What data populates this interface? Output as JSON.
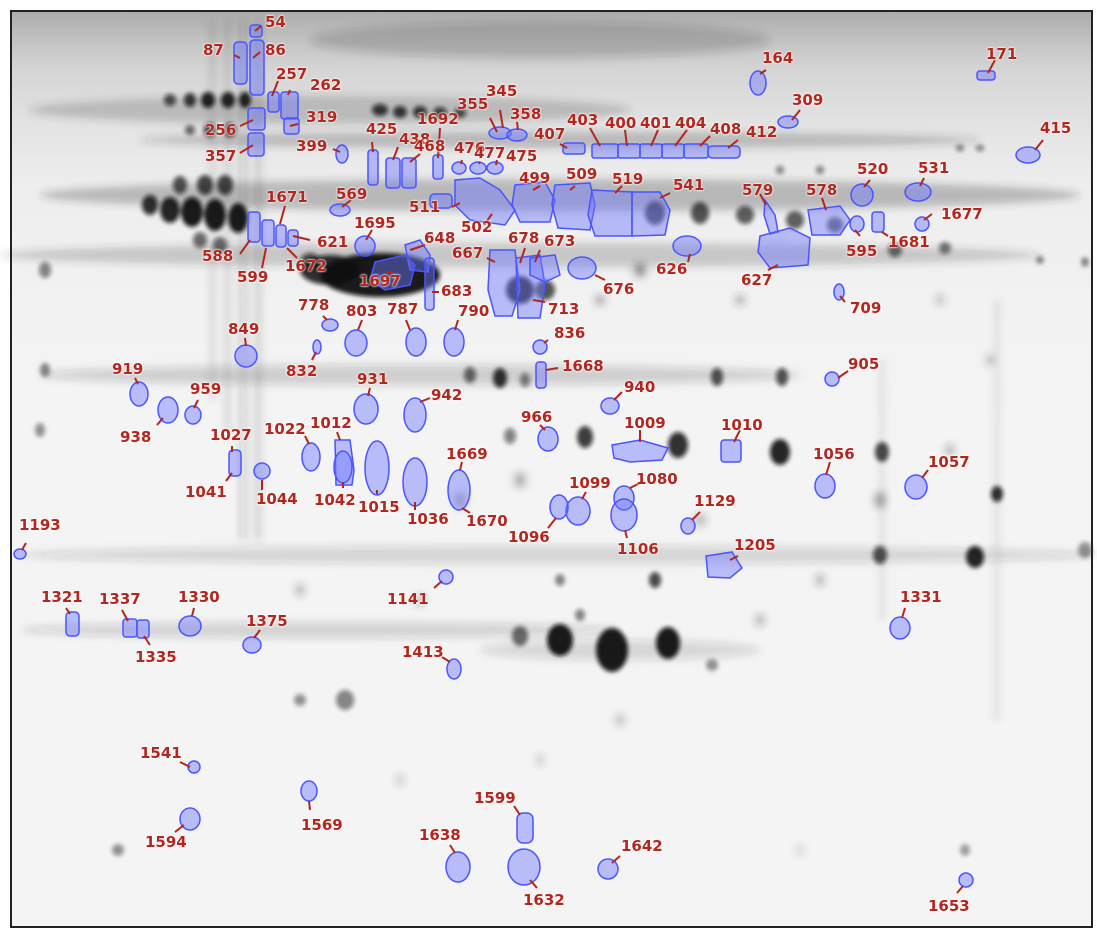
{
  "image": {
    "subject": "2D gel electrophoresis",
    "colors": {
      "background": "#f4f4f4",
      "spot": "#111111",
      "outline": "#4a55ff",
      "outline_fill": "rgba(110,120,255,0.45)",
      "label": "#b3261e",
      "leader": "#b3261e"
    }
  },
  "spots": [
    {
      "id": "54"
    },
    {
      "id": "86"
    },
    {
      "id": "87"
    },
    {
      "id": "257"
    },
    {
      "id": "262"
    },
    {
      "id": "256"
    },
    {
      "id": "319"
    },
    {
      "id": "357"
    },
    {
      "id": "164"
    },
    {
      "id": "171"
    },
    {
      "id": "309"
    },
    {
      "id": "415"
    },
    {
      "id": "345"
    },
    {
      "id": "355"
    },
    {
      "id": "358"
    },
    {
      "id": "407"
    },
    {
      "id": "403"
    },
    {
      "id": "400"
    },
    {
      "id": "401"
    },
    {
      "id": "404"
    },
    {
      "id": "408"
    },
    {
      "id": "412"
    },
    {
      "id": "425"
    },
    {
      "id": "399"
    },
    {
      "id": "438"
    },
    {
      "id": "468"
    },
    {
      "id": "1692"
    },
    {
      "id": "476"
    },
    {
      "id": "477"
    },
    {
      "id": "475"
    },
    {
      "id": "520"
    },
    {
      "id": "531"
    },
    {
      "id": "499"
    },
    {
      "id": "509"
    },
    {
      "id": "519"
    },
    {
      "id": "541"
    },
    {
      "id": "569"
    },
    {
      "id": "511"
    },
    {
      "id": "502"
    },
    {
      "id": "579"
    },
    {
      "id": "578"
    },
    {
      "id": "1677"
    },
    {
      "id": "595"
    },
    {
      "id": "1681"
    },
    {
      "id": "1671"
    },
    {
      "id": "588"
    },
    {
      "id": "599"
    },
    {
      "id": "621"
    },
    {
      "id": "1672"
    },
    {
      "id": "1695"
    },
    {
      "id": "648"
    },
    {
      "id": "667"
    },
    {
      "id": "678"
    },
    {
      "id": "673"
    },
    {
      "id": "626"
    },
    {
      "id": "627"
    },
    {
      "id": "676"
    },
    {
      "id": "1697"
    },
    {
      "id": "683"
    },
    {
      "id": "713"
    },
    {
      "id": "709"
    },
    {
      "id": "778"
    },
    {
      "id": "803"
    },
    {
      "id": "787"
    },
    {
      "id": "790"
    },
    {
      "id": "836"
    },
    {
      "id": "849"
    },
    {
      "id": "832"
    },
    {
      "id": "1668"
    },
    {
      "id": "905"
    },
    {
      "id": "919"
    },
    {
      "id": "959"
    },
    {
      "id": "931"
    },
    {
      "id": "942"
    },
    {
      "id": "940"
    },
    {
      "id": "938"
    },
    {
      "id": "966"
    },
    {
      "id": "1009"
    },
    {
      "id": "1010"
    },
    {
      "id": "1027"
    },
    {
      "id": "1022"
    },
    {
      "id": "1012"
    },
    {
      "id": "1669"
    },
    {
      "id": "1056"
    },
    {
      "id": "1057"
    },
    {
      "id": "1041"
    },
    {
      "id": "1044"
    },
    {
      "id": "1042"
    },
    {
      "id": "1015"
    },
    {
      "id": "1036"
    },
    {
      "id": "1670"
    },
    {
      "id": "1099"
    },
    {
      "id": "1080"
    },
    {
      "id": "1096"
    },
    {
      "id": "1129"
    },
    {
      "id": "1106"
    },
    {
      "id": "1193"
    },
    {
      "id": "1205"
    },
    {
      "id": "1141"
    },
    {
      "id": "1321"
    },
    {
      "id": "1337"
    },
    {
      "id": "1330"
    },
    {
      "id": "1331"
    },
    {
      "id": "1335"
    },
    {
      "id": "1375"
    },
    {
      "id": "1413"
    },
    {
      "id": "1541"
    },
    {
      "id": "1599"
    },
    {
      "id": "1569"
    },
    {
      "id": "1594"
    },
    {
      "id": "1638"
    },
    {
      "id": "1642"
    },
    {
      "id": "1632"
    },
    {
      "id": "1653"
    }
  ]
}
